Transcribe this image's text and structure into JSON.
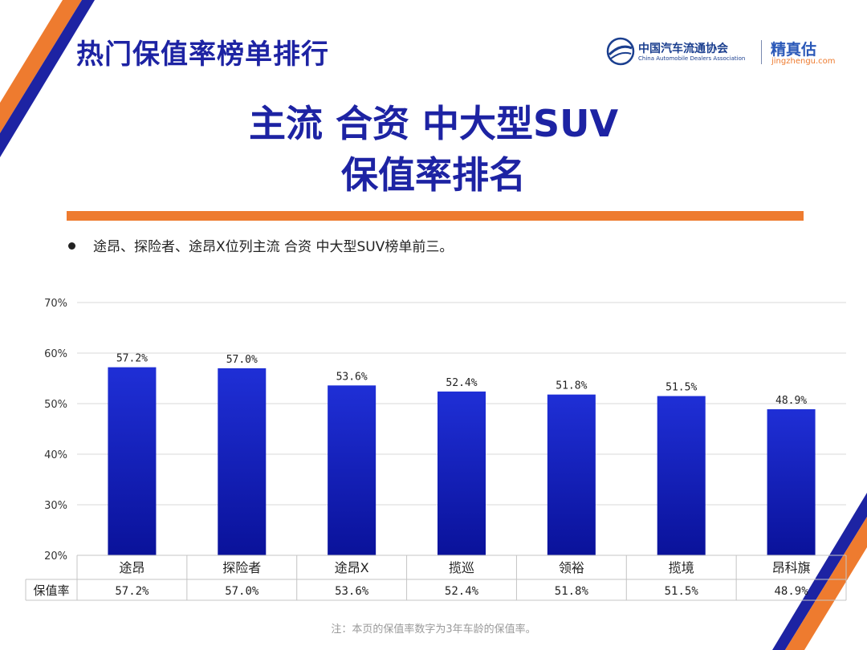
{
  "header": {
    "title": "热门保值率榜单排行",
    "logo_cada_name": "中国汽车流通协会",
    "logo_cada_en": "China Automobile Dealers Association",
    "logo_jzg_name": "精真估",
    "logo_jzg_en": "jingzhengu.com"
  },
  "main_title": {
    "line1": "主流  合资  中大型SUV",
    "line2": "保值率排名"
  },
  "bullet": "途昂、探险者、途昂X位列主流 合资 中大型SUV榜单前三。",
  "chart_data": {
    "type": "bar",
    "categories": [
      "途昂",
      "探险者",
      "途昂X",
      "揽巡",
      "领裕",
      "揽境",
      "昂科旗"
    ],
    "values": [
      57.2,
      57.0,
      53.6,
      52.4,
      51.8,
      51.5,
      48.9
    ],
    "value_labels": [
      "57.2%",
      "57.0%",
      "53.6%",
      "52.4%",
      "51.8%",
      "51.5%",
      "48.9%"
    ],
    "ylim": [
      20,
      70
    ],
    "yticks": [
      "20%",
      "30%",
      "40%",
      "50%",
      "60%",
      "70%"
    ],
    "grid": true,
    "bar_color_top": "#1f2fd6",
    "bar_color_bottom": "#0a129a",
    "table_row_label": "保值率"
  },
  "footnote": "注：本页的保值率数字为3年车龄的保值率。",
  "colors": {
    "title": "#1d23a3",
    "accent_orange": "#ee7b2f",
    "brand_blue": "#1b3f8f"
  }
}
